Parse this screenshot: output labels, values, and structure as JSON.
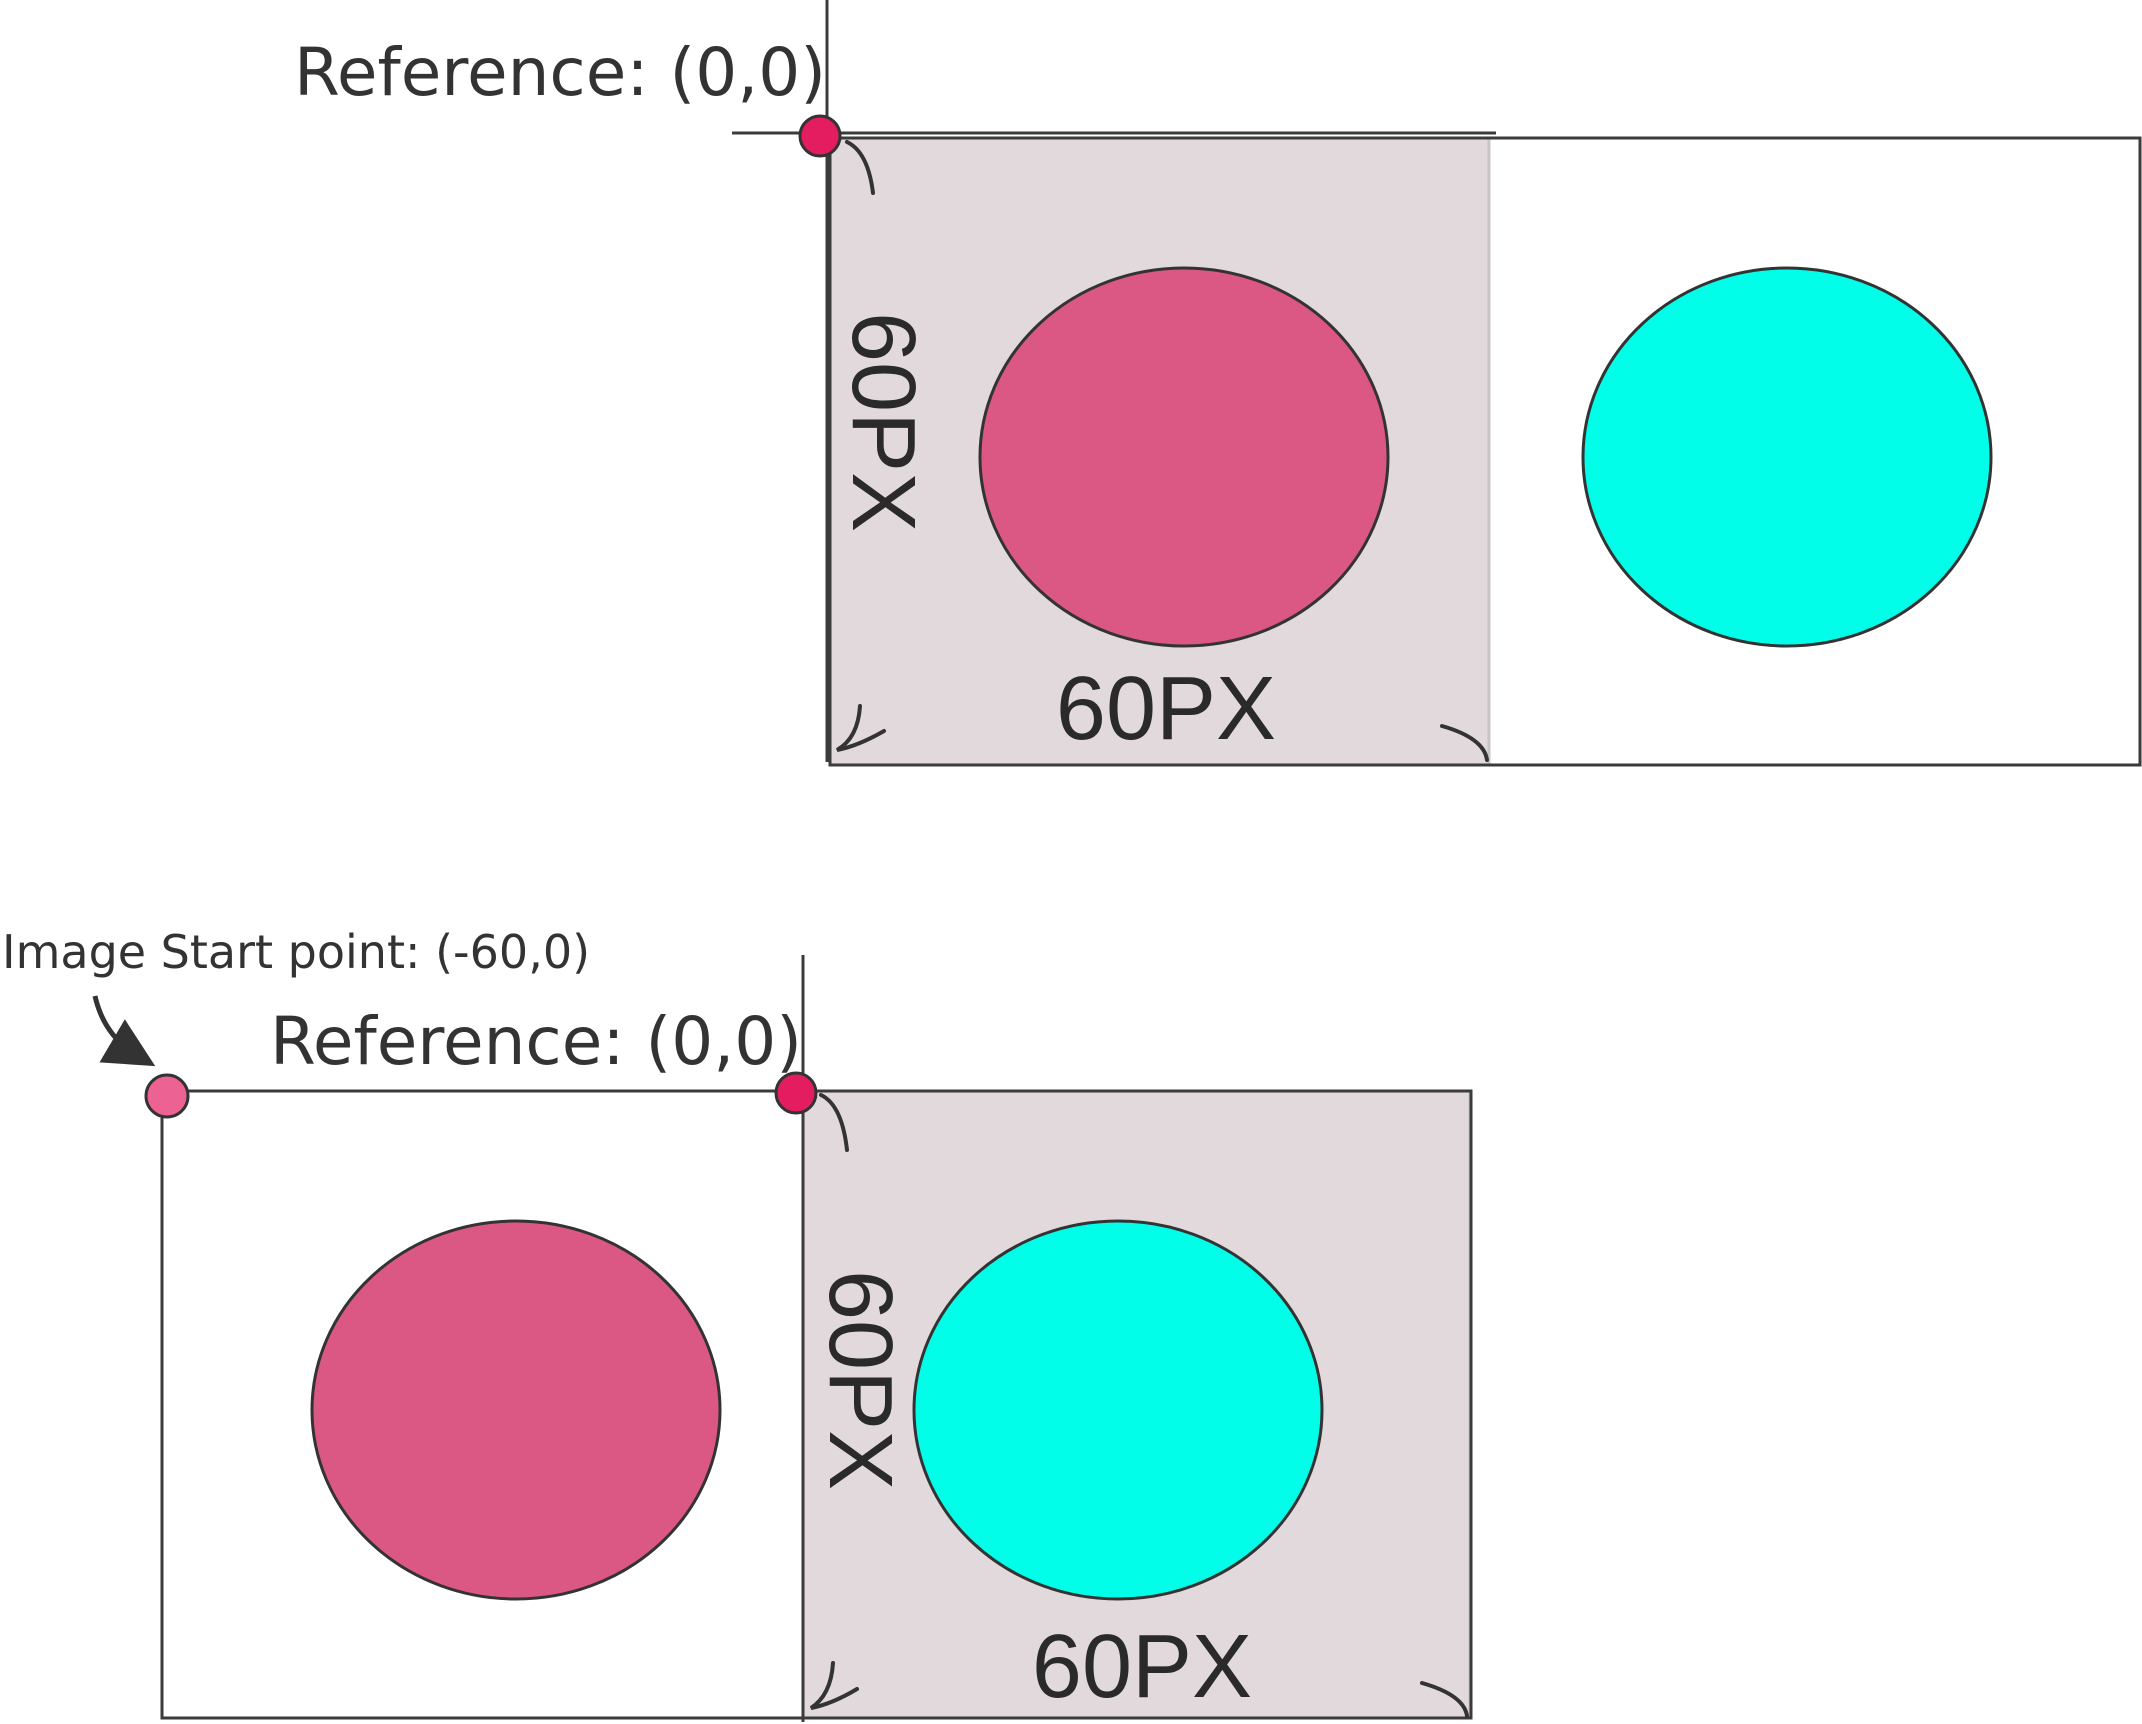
{
  "top_panel": {
    "reference_label": "Reference: (0,0)",
    "width_label": "60PX",
    "height_label": "60PX"
  },
  "bottom_panel": {
    "image_start_label": "Image Start point: (-60,0)",
    "reference_label": "Reference: (0,0)",
    "width_label": "60PX",
    "height_label": "60PX"
  },
  "colors": {
    "pink_circle": "#dc5884",
    "cyan_circle": "#00fee9",
    "reference_dot": "#e31d5f",
    "start_dot": "#ec6393",
    "shaded_region": "#e1d9dc"
  }
}
